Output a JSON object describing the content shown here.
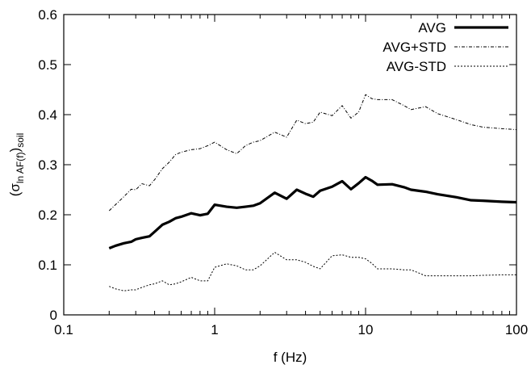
{
  "chart_data": {
    "type": "line",
    "xlabel": "f (Hz)",
    "ylabel": {
      "main": "(σ",
      "sub_ln": "ln AF(f)",
      "close": ")",
      "sub_soil": "soil"
    },
    "xscale": "log",
    "xlim": [
      0.1,
      100
    ],
    "ylim": [
      0,
      0.6
    ],
    "xticks": [
      {
        "value": 0.1,
        "label": "0.1"
      },
      {
        "value": 1,
        "label": "1"
      },
      {
        "value": 10,
        "label": "10"
      },
      {
        "value": 100,
        "label": "100"
      }
    ],
    "yticks": [
      {
        "value": 0,
        "label": "0"
      },
      {
        "value": 0.1,
        "label": "0.1"
      },
      {
        "value": 0.2,
        "label": "0.2"
      },
      {
        "value": 0.3,
        "label": "0.3"
      },
      {
        "value": 0.4,
        "label": "0.4"
      },
      {
        "value": 0.5,
        "label": "0.5"
      },
      {
        "value": 0.6,
        "label": "0.6"
      }
    ],
    "grid": false,
    "legend_position": "top-right",
    "series": [
      {
        "name": "AVG",
        "style": "solid-thick",
        "color": "#000000",
        "x": [
          0.2,
          0.22,
          0.25,
          0.28,
          0.3,
          0.33,
          0.37,
          0.4,
          0.45,
          0.5,
          0.55,
          0.6,
          0.7,
          0.8,
          0.9,
          1.0,
          1.2,
          1.4,
          1.6,
          1.8,
          2.0,
          2.5,
          3.0,
          3.5,
          4.0,
          4.5,
          5.0,
          6.0,
          7.0,
          8.0,
          9.0,
          10,
          11,
          12,
          15,
          18,
          20,
          25,
          30,
          40,
          50,
          60,
          80,
          100
        ],
        "y": [
          0.133,
          0.138,
          0.143,
          0.146,
          0.151,
          0.154,
          0.157,
          0.166,
          0.18,
          0.186,
          0.193,
          0.196,
          0.203,
          0.199,
          0.202,
          0.22,
          0.216,
          0.214,
          0.216,
          0.218,
          0.223,
          0.244,
          0.232,
          0.25,
          0.242,
          0.236,
          0.248,
          0.256,
          0.267,
          0.251,
          0.263,
          0.275,
          0.268,
          0.26,
          0.261,
          0.255,
          0.25,
          0.246,
          0.241,
          0.235,
          0.229,
          0.228,
          0.226,
          0.225
        ]
      },
      {
        "name": "AVG+STD",
        "style": "dash-dot",
        "color": "#000000",
        "x": [
          0.2,
          0.22,
          0.25,
          0.28,
          0.3,
          0.33,
          0.37,
          0.4,
          0.45,
          0.5,
          0.55,
          0.6,
          0.7,
          0.8,
          0.9,
          1.0,
          1.2,
          1.4,
          1.6,
          1.8,
          2.0,
          2.5,
          3.0,
          3.5,
          4.0,
          4.5,
          5.0,
          6.0,
          7.0,
          8.0,
          9.0,
          10,
          11,
          12,
          15,
          18,
          20,
          25,
          30,
          40,
          50,
          60,
          80,
          100
        ],
        "y": [
          0.208,
          0.22,
          0.236,
          0.251,
          0.25,
          0.262,
          0.258,
          0.27,
          0.292,
          0.305,
          0.32,
          0.325,
          0.33,
          0.332,
          0.338,
          0.345,
          0.33,
          0.322,
          0.338,
          0.345,
          0.348,
          0.365,
          0.355,
          0.389,
          0.382,
          0.385,
          0.405,
          0.398,
          0.418,
          0.393,
          0.405,
          0.44,
          0.432,
          0.43,
          0.43,
          0.418,
          0.41,
          0.416,
          0.402,
          0.39,
          0.38,
          0.375,
          0.372,
          0.37
        ]
      },
      {
        "name": "AVG-STD",
        "style": "dotted",
        "color": "#000000",
        "x": [
          0.2,
          0.22,
          0.25,
          0.28,
          0.3,
          0.33,
          0.37,
          0.4,
          0.45,
          0.5,
          0.55,
          0.6,
          0.7,
          0.8,
          0.9,
          1.0,
          1.2,
          1.4,
          1.6,
          1.8,
          2.0,
          2.5,
          3.0,
          3.5,
          4.0,
          4.5,
          5.0,
          6.0,
          7.0,
          8.0,
          9.0,
          10,
          11,
          12,
          15,
          18,
          20,
          25,
          30,
          40,
          50,
          60,
          80,
          100
        ],
        "y": [
          0.057,
          0.052,
          0.048,
          0.05,
          0.05,
          0.055,
          0.06,
          0.062,
          0.068,
          0.06,
          0.062,
          0.066,
          0.075,
          0.068,
          0.068,
          0.095,
          0.102,
          0.098,
          0.09,
          0.09,
          0.098,
          0.125,
          0.11,
          0.11,
          0.105,
          0.097,
          0.092,
          0.118,
          0.12,
          0.115,
          0.115,
          0.112,
          0.103,
          0.092,
          0.092,
          0.09,
          0.09,
          0.078,
          0.078,
          0.078,
          0.078,
          0.079,
          0.08,
          0.08
        ]
      }
    ]
  }
}
